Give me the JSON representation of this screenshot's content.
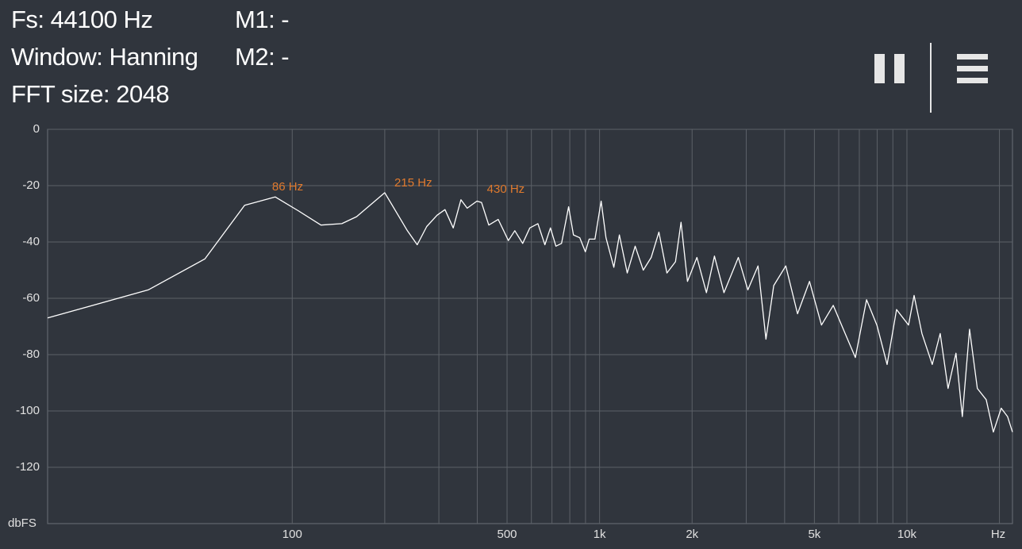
{
  "header": {
    "info": [
      "Fs: 44100 Hz",
      "Window: Hanning",
      "FFT size: 2048"
    ],
    "markers": [
      "M1: -",
      "M2: -"
    ]
  },
  "chart_data": {
    "type": "line",
    "xscale": "log",
    "grid": true,
    "color": "#ffffff",
    "x_label": "Hz",
    "y_label": "dbFS",
    "xlim": [
      16,
      22050
    ],
    "ylim": [
      -140,
      0
    ],
    "yticks": [
      0,
      -20,
      -40,
      -60,
      -80,
      -100,
      -120
    ],
    "xticks": [
      100,
      500,
      {
        "value": 1000,
        "label": "1k"
      },
      {
        "value": 2000,
        "label": "2k"
      },
      {
        "value": 5000,
        "label": "5k"
      },
      {
        "value": 10000,
        "label": "10k"
      }
    ],
    "xgrid": [
      100,
      200,
      300,
      400,
      500,
      600,
      700,
      800,
      900,
      1000,
      2000,
      3000,
      4000,
      5000,
      6000,
      7000,
      8000,
      9000,
      10000,
      20000
    ],
    "annotations": [
      {
        "x": 86,
        "y": -24,
        "label": "86 Hz"
      },
      {
        "x": 215,
        "y": -22.5,
        "label": "215 Hz"
      },
      {
        "x": 430,
        "y": -24.8,
        "label": "430 Hz"
      }
    ],
    "annotation_color": "#e07a2e",
    "x": [
      16,
      34,
      52,
      70,
      88,
      105,
      124,
      145,
      162,
      200,
      237,
      255,
      274,
      296,
      314,
      334,
      354,
      371,
      399,
      413,
      436,
      468,
      505,
      530,
      562,
      593,
      630,
      664,
      692,
      721,
      752,
      793,
      822,
      862,
      899,
      925,
      966,
      1012,
      1049,
      1113,
      1160,
      1230,
      1306,
      1387,
      1472,
      1560,
      1656,
      1766,
      1841,
      1932,
      2073,
      2227,
      2364,
      2540,
      2827,
      3036,
      3276,
      3477,
      3687,
      4034,
      4407,
      4819,
      5271,
      5757,
      6295,
      6796,
      7390,
      7983,
      8621,
      9253,
      10118,
      10548,
      11190,
      12090,
      12829,
      13608,
      14440,
      15140,
      15990,
      16950,
      18110,
      19110,
      20270,
      21250,
      22050
    ],
    "values": [
      -67,
      -57,
      -46,
      -27,
      -24,
      -29,
      -34,
      -33.5,
      -31,
      -22.5,
      -36,
      -41,
      -34.5,
      -30.5,
      -28.5,
      -35,
      -25,
      -28,
      -25.5,
      -26,
      -34,
      -32,
      -39.5,
      -36,
      -40.5,
      -35,
      -33.5,
      -41,
      -35,
      -41.5,
      -40.5,
      -27.5,
      -37.5,
      -38.5,
      -43.5,
      -39,
      -39,
      -25.5,
      -38.5,
      -49,
      -37.5,
      -51,
      -41.5,
      -50,
      -45.5,
      -36.5,
      -51,
      -47,
      -33,
      -54,
      -45.5,
      -58,
      -45,
      -58,
      -45.5,
      -57,
      -48.5,
      -74.5,
      -55.5,
      -48.5,
      -65.5,
      -54,
      -69.5,
      -62.5,
      -72.5,
      -81,
      -60.5,
      -69.5,
      -83.5,
      -64,
      -69.5,
      -59,
      -72.5,
      -83.5,
      -72.5,
      -92,
      -79.5,
      -102,
      -71,
      -92,
      -96,
      -107.5,
      -99,
      -102,
      -107.5
    ]
  }
}
